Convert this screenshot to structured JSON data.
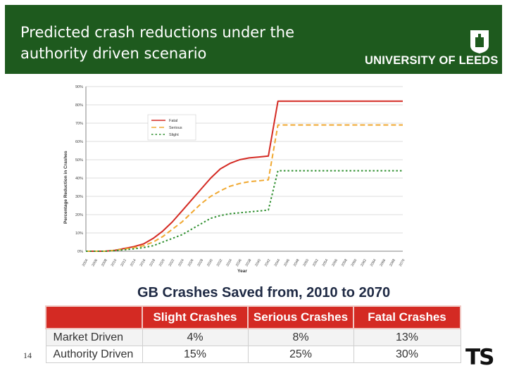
{
  "slide": {
    "title": "Predicted crash reductions under the authority driven scenario",
    "logo_text": "UNIVERSITY OF LEEDS",
    "page_number": "14",
    "footer_logo": "TS"
  },
  "colors": {
    "header_bg": "#1e5a1e",
    "fatal": "#d42a23",
    "serious": "#f0a830",
    "slight": "#2f8f2f",
    "table_header": "#d42a23"
  },
  "chart_data": {
    "type": "line",
    "ylabel": "Percentage Reduction in Crashes",
    "xlabel": "Year",
    "ylim": [
      0,
      90
    ],
    "yticks": [
      "0%",
      "10%",
      "20%",
      "30%",
      "40%",
      "50%",
      "60%",
      "70%",
      "80%",
      "90%"
    ],
    "x": [
      "2004",
      "2006",
      "2008",
      "2010",
      "2012",
      "2014",
      "2016",
      "2018",
      "2020",
      "2022",
      "2024",
      "2026",
      "2028",
      "2030",
      "2032",
      "2034",
      "2036",
      "2038",
      "2040",
      "2042",
      "2044",
      "2046",
      "2048",
      "2050",
      "2052",
      "2054",
      "2056",
      "2058",
      "2060",
      "2062",
      "2064",
      "2066",
      "2068",
      "2070"
    ],
    "legend": {
      "position": "top-left"
    },
    "series": [
      {
        "name": "Fatal",
        "style": "solid",
        "values": [
          0,
          0,
          0,
          0.5,
          1.5,
          2.5,
          4,
          7,
          11,
          16,
          22,
          28,
          34,
          40,
          45,
          48,
          50,
          51,
          51.5,
          52,
          82,
          82,
          82,
          82,
          82,
          82,
          82,
          82,
          82,
          82,
          82,
          82,
          82,
          82
        ]
      },
      {
        "name": "Serious",
        "style": "dashed",
        "values": [
          0,
          0,
          0,
          0.5,
          1.2,
          2,
          3,
          5,
          8,
          12,
          16,
          21,
          26,
          30,
          33,
          35.5,
          37,
          38,
          38.5,
          39,
          69,
          69,
          69,
          69,
          69,
          69,
          69,
          69,
          69,
          69,
          69,
          69,
          69,
          69
        ]
      },
      {
        "name": "Slight",
        "style": "dotted",
        "values": [
          0,
          0,
          0,
          0.3,
          0.8,
          1.3,
          2,
          3,
          5,
          7,
          9,
          12,
          15,
          18,
          19.5,
          20.5,
          21,
          21.5,
          22,
          22.5,
          44,
          44,
          44,
          44,
          44,
          44,
          44,
          44,
          44,
          44,
          44,
          44,
          44,
          44
        ]
      }
    ]
  },
  "table": {
    "title": "GB Crashes Saved from, 2010 to 2070",
    "headers": [
      "",
      "Slight Crashes",
      "Serious Crashes",
      "Fatal Crashes"
    ],
    "rows": [
      {
        "label": "Market Driven",
        "values": [
          "4%",
          "8%",
          "13%"
        ]
      },
      {
        "label": "Authority Driven",
        "values": [
          "15%",
          "25%",
          "30%"
        ]
      }
    ]
  }
}
